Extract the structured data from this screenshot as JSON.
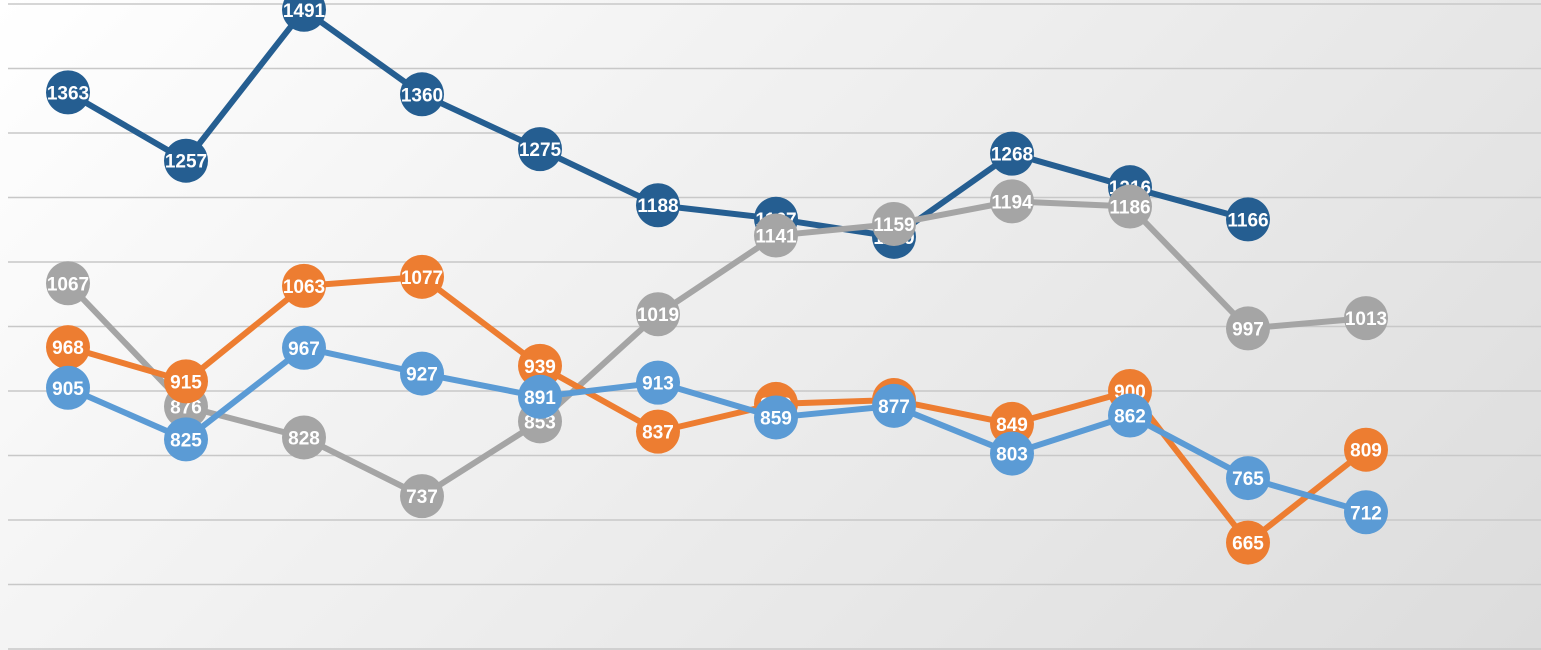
{
  "chart_data": {
    "type": "line",
    "x": [
      1,
      2,
      3,
      4,
      5,
      6,
      7,
      8,
      9,
      10,
      11,
      12
    ],
    "ylim": [
      500,
      1500
    ],
    "grid": true,
    "series": [
      {
        "color": "#255e91",
        "values": [
          1363,
          1257,
          1491,
          1360,
          1275,
          1188,
          1167,
          1139,
          1268,
          1216,
          1166,
          null
        ]
      },
      {
        "color": "#a5a5a5",
        "values": [
          1067,
          876,
          828,
          737,
          853,
          1019,
          1141,
          1159,
          1194,
          1186,
          997,
          1013
        ]
      },
      {
        "color": "#ed7d31",
        "values": [
          968,
          915,
          1063,
          1077,
          939,
          837,
          880,
          886,
          849,
          900,
          665,
          809
        ]
      },
      {
        "color": "#5b9bd5",
        "values": [
          905,
          825,
          967,
          927,
          891,
          913,
          859,
          877,
          803,
          862,
          765,
          712
        ]
      }
    ]
  }
}
